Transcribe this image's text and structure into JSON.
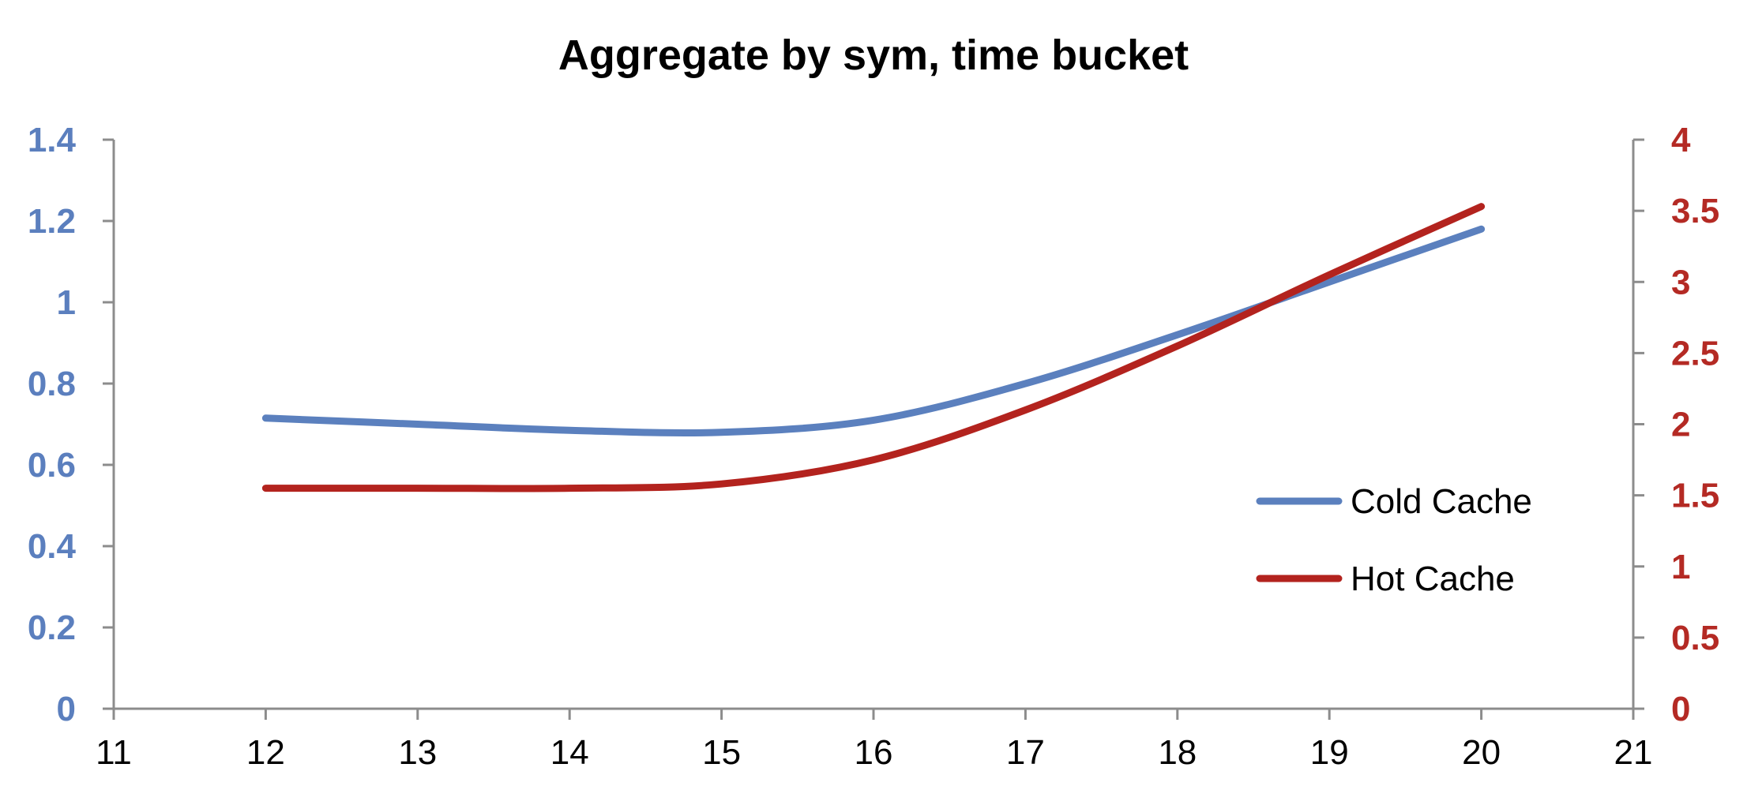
{
  "chart_data": {
    "type": "line",
    "title": "Aggregate by sym, time bucket",
    "xlabel": "",
    "ylabel": "",
    "y2label": "",
    "x_ticks": [
      "11",
      "12",
      "13",
      "14",
      "15",
      "16",
      "17",
      "18",
      "19",
      "20",
      "21"
    ],
    "xlim": [
      11,
      21
    ],
    "y_left_ticks": [
      "0",
      "0.2",
      "0.4",
      "0.6",
      "0.8",
      "1",
      "1.2",
      "1.4"
    ],
    "ylim_left": [
      0,
      1.4
    ],
    "y_right_ticks": [
      "0",
      "0.5",
      "1",
      "1.5",
      "2",
      "2.5",
      "3",
      "3.5",
      "4"
    ],
    "ylim_right": [
      0,
      4
    ],
    "grid": false,
    "legend_position": "right",
    "colors": {
      "left_axis_text": "#5b7fbe",
      "right_axis_text": "#b42a24",
      "axis_lines": "#8c8c8c"
    },
    "series": [
      {
        "name": "Cold Cache",
        "axis": "left",
        "color": "#5b80be",
        "x": [
          12,
          13,
          14,
          15,
          16,
          17,
          18,
          19,
          20
        ],
        "y": [
          0.715,
          0.7,
          0.685,
          0.68,
          0.71,
          0.8,
          0.92,
          1.05,
          1.18
        ]
      },
      {
        "name": "Hot Cache",
        "axis": "right",
        "color": "#b3231e",
        "x": [
          12,
          13,
          14,
          15,
          16,
          17,
          18,
          19,
          20
        ],
        "y": [
          1.55,
          1.55,
          1.55,
          1.58,
          1.75,
          2.1,
          2.55,
          3.05,
          3.53
        ]
      }
    ]
  }
}
